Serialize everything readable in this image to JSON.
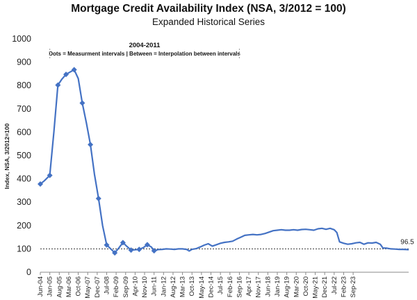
{
  "chart_data": {
    "type": "line",
    "title": "Mortgage Credit Availability Index (NSA, 3/2012 = 100)",
    "subtitle": "Expanded Historical Series",
    "ylabel": "Index, NSA, 3/2012=100",
    "ylim": [
      0,
      1000
    ],
    "yticks": [
      0,
      100,
      200,
      300,
      400,
      500,
      600,
      700,
      800,
      900,
      1000
    ],
    "reference_line": 100,
    "x_tick_labels": [
      "Jun-04",
      "Jan-05",
      "Aug-05",
      "Mar-06",
      "Oct-06",
      "May-07",
      "Dec-07",
      "Jul-08",
      "Feb-09",
      "Sep-09",
      "Apr-10",
      "Nov-10",
      "Jun-11",
      "Jan-12",
      "Aug-12",
      "Mar-13",
      "Oct-13",
      "May-14",
      "Dec-14",
      "Jul-15",
      "Feb-16",
      "Sep-16",
      "Apr-17",
      "Nov-17",
      "Jun-18",
      "Jan-19",
      "Aug-19",
      "Mar-20",
      "Oct-20",
      "May-21",
      "Dec-21",
      "Jul-22",
      "Feb-23",
      "Sep-23"
    ],
    "annotation": {
      "heading": "2004-2011",
      "text": "Dots = Measurment intervals  |  Between = Interpolation between intervals",
      "x_start": "Jan-05",
      "x_end": "Sep-16"
    },
    "end_label": "96.5",
    "series": [
      {
        "color": "#4472C4",
        "markers": [
          {
            "x": 0,
            "y": 378
          },
          {
            "x": 7,
            "y": 415
          },
          {
            "x": 13,
            "y": 802
          },
          {
            "x": 19,
            "y": 848
          },
          {
            "x": 25,
            "y": 868
          },
          {
            "x": 31,
            "y": 725
          },
          {
            "x": 37,
            "y": 547
          },
          {
            "x": 43,
            "y": 316
          },
          {
            "x": 49,
            "y": 117
          },
          {
            "x": 55,
            "y": 83
          },
          {
            "x": 61,
            "y": 127
          },
          {
            "x": 67,
            "y": 95
          },
          {
            "x": 73,
            "y": 98
          },
          {
            "x": 79,
            "y": 118
          },
          {
            "x": 84,
            "y": 92
          }
        ],
        "points": [
          [
            0,
            378
          ],
          [
            3,
            392
          ],
          [
            7,
            415
          ],
          [
            10,
            600
          ],
          [
            13,
            802
          ],
          [
            16,
            828
          ],
          [
            19,
            848
          ],
          [
            22,
            858
          ],
          [
            25,
            868
          ],
          [
            28,
            830
          ],
          [
            31,
            725
          ],
          [
            34,
            640
          ],
          [
            37,
            547
          ],
          [
            40,
            420
          ],
          [
            43,
            316
          ],
          [
            46,
            200
          ],
          [
            49,
            117
          ],
          [
            52,
            100
          ],
          [
            55,
            83
          ],
          [
            58,
            104
          ],
          [
            61,
            127
          ],
          [
            64,
            110
          ],
          [
            67,
            95
          ],
          [
            70,
            96
          ],
          [
            73,
            98
          ],
          [
            76,
            105
          ],
          [
            79,
            118
          ],
          [
            82,
            108
          ],
          [
            84,
            92
          ],
          [
            87,
            97
          ],
          [
            90,
            98
          ],
          [
            93,
            100
          ],
          [
            96,
            99
          ],
          [
            99,
            98
          ],
          [
            102,
            100
          ],
          [
            105,
            100
          ],
          [
            108,
            98
          ],
          [
            110,
            91
          ],
          [
            112,
            98
          ],
          [
            115,
            101
          ],
          [
            118,
            108
          ],
          [
            121,
            116
          ],
          [
            124,
            122
          ],
          [
            127,
            112
          ],
          [
            130,
            118
          ],
          [
            133,
            124
          ],
          [
            136,
            128
          ],
          [
            139,
            130
          ],
          [
            142,
            133
          ],
          [
            145,
            142
          ],
          [
            148,
            150
          ],
          [
            151,
            158
          ],
          [
            154,
            160
          ],
          [
            157,
            162
          ],
          [
            160,
            160
          ],
          [
            163,
            162
          ],
          [
            166,
            166
          ],
          [
            169,
            172
          ],
          [
            172,
            178
          ],
          [
            175,
            180
          ],
          [
            178,
            182
          ],
          [
            181,
            180
          ],
          [
            184,
            180
          ],
          [
            187,
            182
          ],
          [
            190,
            180
          ],
          [
            193,
            183
          ],
          [
            196,
            184
          ],
          [
            199,
            182
          ],
          [
            202,
            180
          ],
          [
            205,
            186
          ],
          [
            208,
            188
          ],
          [
            211,
            184
          ],
          [
            214,
            188
          ],
          [
            217,
            182
          ],
          [
            219,
            170
          ],
          [
            221,
            130
          ],
          [
            224,
            124
          ],
          [
            227,
            120
          ],
          [
            230,
            122
          ],
          [
            233,
            126
          ],
          [
            236,
            128
          ],
          [
            239,
            120
          ],
          [
            242,
            126
          ],
          [
            245,
            125
          ],
          [
            248,
            128
          ],
          [
            251,
            120
          ],
          [
            253,
            104
          ],
          [
            256,
            103
          ],
          [
            259,
            100
          ],
          [
            262,
            99
          ],
          [
            265,
            98
          ],
          [
            268,
            98
          ],
          [
            271,
            97
          ],
          [
            272,
            96.5
          ]
        ]
      }
    ]
  }
}
